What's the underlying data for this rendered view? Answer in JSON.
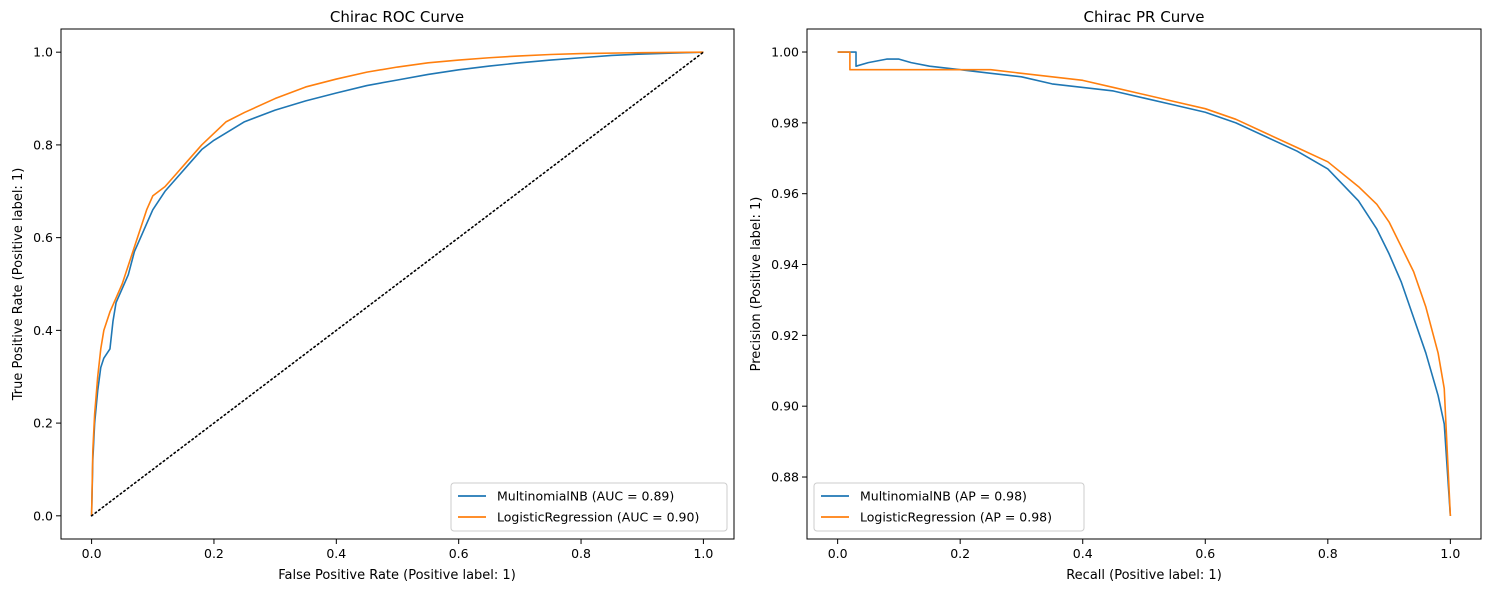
{
  "chart_data": [
    {
      "type": "line",
      "title": "Chirac ROC Curve",
      "xlabel": "False Positive Rate (Positive label: 1)",
      "ylabel": "True Positive Rate (Positive label: 1)",
      "xlim": [
        -0.05,
        1.05
      ],
      "ylim": [
        -0.05,
        1.05
      ],
      "xticks": [
        "0.0",
        "0.2",
        "0.4",
        "0.6",
        "0.8",
        "1.0"
      ],
      "yticks": [
        "0.0",
        "0.2",
        "0.4",
        "0.6",
        "0.8",
        "1.0"
      ],
      "grid": false,
      "legend_position": "lower-right",
      "series": [
        {
          "name": "MultinomialNB (AUC = 0.89)",
          "color": "#1f77b4",
          "points": [
            [
              0,
              0
            ],
            [
              0.002,
              0.12
            ],
            [
              0.005,
              0.2
            ],
            [
              0.01,
              0.27
            ],
            [
              0.015,
              0.32
            ],
            [
              0.02,
              0.34
            ],
            [
              0.025,
              0.35
            ],
            [
              0.03,
              0.36
            ],
            [
              0.035,
              0.42
            ],
            [
              0.04,
              0.46
            ],
            [
              0.05,
              0.49
            ],
            [
              0.06,
              0.52
            ],
            [
              0.07,
              0.57
            ],
            [
              0.08,
              0.6
            ],
            [
              0.09,
              0.63
            ],
            [
              0.1,
              0.66
            ],
            [
              0.12,
              0.7
            ],
            [
              0.14,
              0.73
            ],
            [
              0.16,
              0.76
            ],
            [
              0.18,
              0.79
            ],
            [
              0.2,
              0.81
            ],
            [
              0.25,
              0.85
            ],
            [
              0.3,
              0.875
            ],
            [
              0.35,
              0.895
            ],
            [
              0.4,
              0.912
            ],
            [
              0.45,
              0.928
            ],
            [
              0.5,
              0.94
            ],
            [
              0.55,
              0.952
            ],
            [
              0.6,
              0.962
            ],
            [
              0.65,
              0.97
            ],
            [
              0.7,
              0.977
            ],
            [
              0.75,
              0.983
            ],
            [
              0.8,
              0.988
            ],
            [
              0.85,
              0.993
            ],
            [
              0.9,
              0.996
            ],
            [
              0.95,
              0.998
            ],
            [
              1,
              1
            ]
          ]
        },
        {
          "name": "LogisticRegression (AUC = 0.90)",
          "color": "#ff7f0e",
          "points": [
            [
              0,
              0
            ],
            [
              0.002,
              0.14
            ],
            [
              0.005,
              0.22
            ],
            [
              0.01,
              0.3
            ],
            [
              0.015,
              0.36
            ],
            [
              0.02,
              0.4
            ],
            [
              0.03,
              0.44
            ],
            [
              0.04,
              0.47
            ],
            [
              0.05,
              0.5
            ],
            [
              0.06,
              0.54
            ],
            [
              0.07,
              0.58
            ],
            [
              0.08,
              0.62
            ],
            [
              0.09,
              0.66
            ],
            [
              0.1,
              0.69
            ],
            [
              0.12,
              0.71
            ],
            [
              0.14,
              0.74
            ],
            [
              0.16,
              0.77
            ],
            [
              0.18,
              0.8
            ],
            [
              0.2,
              0.825
            ],
            [
              0.22,
              0.85
            ],
            [
              0.25,
              0.87
            ],
            [
              0.3,
              0.9
            ],
            [
              0.35,
              0.925
            ],
            [
              0.4,
              0.942
            ],
            [
              0.45,
              0.957
            ],
            [
              0.5,
              0.968
            ],
            [
              0.55,
              0.977
            ],
            [
              0.6,
              0.983
            ],
            [
              0.65,
              0.988
            ],
            [
              0.7,
              0.992
            ],
            [
              0.75,
              0.995
            ],
            [
              0.8,
              0.997
            ],
            [
              0.9,
              0.999
            ],
            [
              1,
              1
            ]
          ]
        },
        {
          "name": "",
          "color": "#000000",
          "style": "dotted",
          "points": [
            [
              0,
              0
            ],
            [
              1,
              1
            ]
          ]
        }
      ]
    },
    {
      "type": "line",
      "title": "Chirac PR Curve",
      "xlabel": "Recall (Positive label: 1)",
      "ylabel": "Precision (Positive label: 1)",
      "xlim": [
        -0.05,
        1.05
      ],
      "ylim": [
        0.8625,
        1.0065
      ],
      "xticks": [
        "0.0",
        "0.2",
        "0.4",
        "0.6",
        "0.8",
        "1.0"
      ],
      "yticks": [
        "0.88",
        "0.90",
        "0.92",
        "0.94",
        "0.96",
        "0.98",
        "1.00"
      ],
      "grid": false,
      "legend_position": "lower-left",
      "series": [
        {
          "name": "MultinomialNB (AP = 0.98)",
          "color": "#1f77b4",
          "points": [
            [
              0,
              1
            ],
            [
              0.03,
              1
            ],
            [
              0.03,
              0.996
            ],
            [
              0.05,
              0.997
            ],
            [
              0.08,
              0.998
            ],
            [
              0.1,
              0.998
            ],
            [
              0.12,
              0.997
            ],
            [
              0.15,
              0.996
            ],
            [
              0.2,
              0.995
            ],
            [
              0.25,
              0.994
            ],
            [
              0.3,
              0.993
            ],
            [
              0.35,
              0.991
            ],
            [
              0.4,
              0.99
            ],
            [
              0.45,
              0.989
            ],
            [
              0.5,
              0.987
            ],
            [
              0.55,
              0.985
            ],
            [
              0.6,
              0.983
            ],
            [
              0.65,
              0.98
            ],
            [
              0.7,
              0.976
            ],
            [
              0.75,
              0.972
            ],
            [
              0.8,
              0.967
            ],
            [
              0.85,
              0.958
            ],
            [
              0.88,
              0.95
            ],
            [
              0.9,
              0.943
            ],
            [
              0.92,
              0.935
            ],
            [
              0.94,
              0.925
            ],
            [
              0.96,
              0.915
            ],
            [
              0.98,
              0.903
            ],
            [
              0.99,
              0.895
            ],
            [
              1,
              0.869
            ]
          ]
        },
        {
          "name": "LogisticRegression (AP = 0.98)",
          "color": "#ff7f0e",
          "points": [
            [
              0,
              1
            ],
            [
              0.02,
              1
            ],
            [
              0.02,
              0.995
            ],
            [
              0.04,
              0.995
            ],
            [
              0.06,
              0.995
            ],
            [
              0.1,
              0.995
            ],
            [
              0.15,
              0.995
            ],
            [
              0.2,
              0.995
            ],
            [
              0.25,
              0.995
            ],
            [
              0.3,
              0.994
            ],
            [
              0.35,
              0.993
            ],
            [
              0.4,
              0.992
            ],
            [
              0.45,
              0.99
            ],
            [
              0.5,
              0.988
            ],
            [
              0.55,
              0.986
            ],
            [
              0.6,
              0.984
            ],
            [
              0.65,
              0.981
            ],
            [
              0.7,
              0.977
            ],
            [
              0.75,
              0.973
            ],
            [
              0.8,
              0.969
            ],
            [
              0.85,
              0.962
            ],
            [
              0.88,
              0.957
            ],
            [
              0.9,
              0.952
            ],
            [
              0.92,
              0.945
            ],
            [
              0.94,
              0.938
            ],
            [
              0.96,
              0.928
            ],
            [
              0.98,
              0.915
            ],
            [
              0.99,
              0.905
            ],
            [
              1,
              0.869
            ]
          ]
        }
      ]
    }
  ]
}
